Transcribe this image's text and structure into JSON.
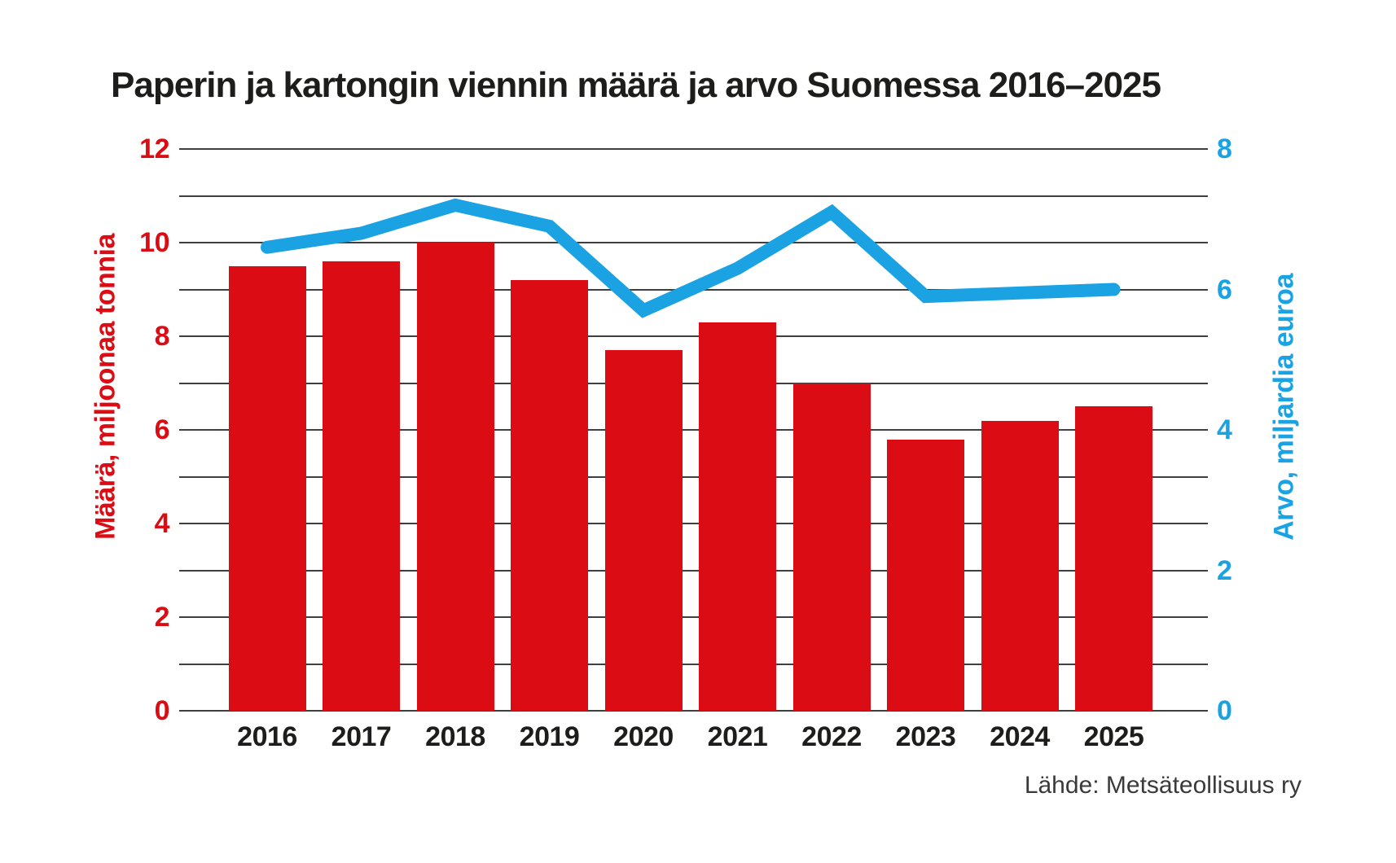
{
  "title": "Paperin ja kartongin viennin määrä ja arvo Suomessa 2016–2025",
  "source_note": "Lähde: Metsäteollisuus ry",
  "chart_data": {
    "type": "bar",
    "title": "Paperin ja kartongin viennin määrä ja arvo Suomessa 2016–2025",
    "categories": [
      "2016",
      "2017",
      "2018",
      "2019",
      "2020",
      "2021",
      "2022",
      "2023",
      "2024",
      "2025"
    ],
    "series": [
      {
        "name": "Määrä, miljoonaa tonnia",
        "type": "bar",
        "axis": "left",
        "color": "#db0c13",
        "values": [
          9.5,
          9.6,
          10.0,
          9.2,
          7.7,
          8.3,
          7.0,
          5.8,
          6.2,
          6.5
        ]
      },
      {
        "name": "Arvo, miljardia euroa",
        "type": "line",
        "axis": "right",
        "color": "#1ba2e2",
        "values": [
          6.6,
          6.8,
          7.2,
          6.9,
          5.7,
          6.3,
          7.1,
          5.9,
          5.95,
          6.0
        ]
      }
    ],
    "left_axis": {
      "label": "Määrä, miljoonaa tonnia",
      "min": 0,
      "max": 12,
      "ticks": [
        0,
        2,
        4,
        6,
        8,
        10,
        12
      ],
      "color": "#db0c13"
    },
    "right_axis": {
      "label": "Arvo, miljardia euroa",
      "min": 0,
      "max": 8,
      "ticks": [
        0,
        2,
        4,
        6,
        8
      ],
      "color": "#1ba2e2"
    },
    "grid": {
      "show": true,
      "step_left_units": 1,
      "color": "#3f3f3f"
    },
    "legend_position": "none",
    "xlabel": "",
    "ylabel_left": "Määrä, miljoonaa tonnia",
    "ylabel_right": "Arvo, miljardia euroa",
    "source": "Lähde: Metsäteollisuus ry"
  }
}
